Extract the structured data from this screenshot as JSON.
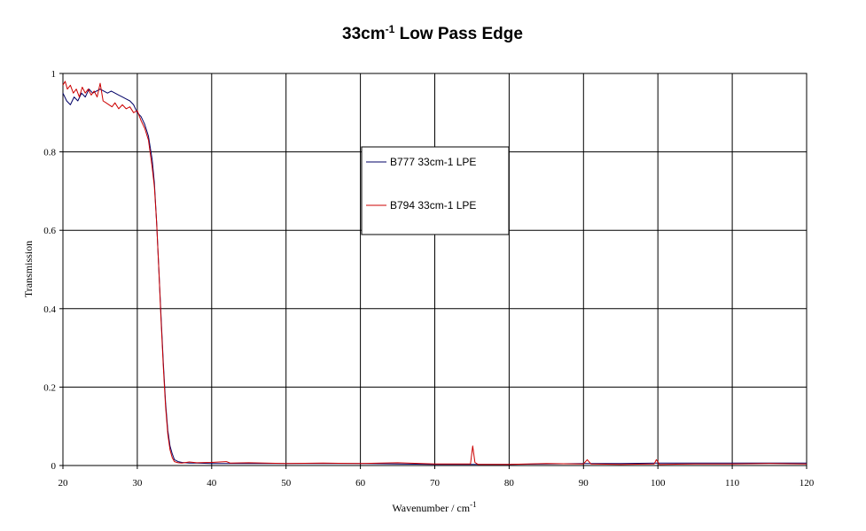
{
  "chart_data": {
    "type": "line",
    "title": {
      "base": "33cm",
      "superscript": "-1",
      "rest": " Low Pass Edge"
    },
    "xlabel": {
      "base": "Wavenumber / cm",
      "superscript": "-1"
    },
    "ylabel": "Transmission",
    "xlim": [
      20,
      120
    ],
    "ylim": [
      0,
      1
    ],
    "x_ticks": [
      20,
      30,
      40,
      50,
      60,
      70,
      80,
      90,
      100,
      110,
      120
    ],
    "y_ticks": [
      0,
      0.2,
      0.4,
      0.6,
      0.8,
      1
    ],
    "grid": true,
    "legend_position": "upper-center",
    "series": [
      {
        "name": "B777 33cm-1  LPE",
        "color": "#000066",
        "x": [
          20,
          20.5,
          21,
          21.5,
          22,
          22.5,
          23,
          23.5,
          24,
          24.5,
          25,
          25.5,
          26,
          26.5,
          27,
          27.5,
          28,
          28.5,
          29,
          29.5,
          30,
          30.5,
          31,
          31.5,
          32,
          32.3,
          32.6,
          32.9,
          33.2,
          33.5,
          33.8,
          34.1,
          34.4,
          34.7,
          35,
          35.5,
          36,
          37,
          38,
          40,
          42,
          45,
          50,
          55,
          60,
          65,
          70,
          75,
          75.5,
          80,
          85,
          90,
          95,
          100,
          105,
          110,
          115,
          120
        ],
        "y": [
          0.95,
          0.93,
          0.92,
          0.94,
          0.93,
          0.95,
          0.94,
          0.96,
          0.95,
          0.955,
          0.96,
          0.955,
          0.95,
          0.955,
          0.95,
          0.945,
          0.94,
          0.935,
          0.93,
          0.92,
          0.9,
          0.89,
          0.87,
          0.84,
          0.78,
          0.72,
          0.62,
          0.5,
          0.38,
          0.26,
          0.16,
          0.09,
          0.05,
          0.03,
          0.015,
          0.01,
          0.008,
          0.006,
          0.006,
          0.005,
          0.005,
          0.005,
          0.005,
          0.005,
          0.005,
          0.004,
          0.003,
          0.003,
          0.003,
          0.003,
          0.004,
          0.005,
          0.005,
          0.006,
          0.006,
          0.006,
          0.006,
          0.006
        ]
      },
      {
        "name": "B794 33cm-1  LPE",
        "color": "#cc0000",
        "x": [
          20,
          20.3,
          20.6,
          21,
          21.4,
          21.8,
          22.2,
          22.6,
          23,
          23.4,
          23.8,
          24.2,
          24.6,
          25,
          25.4,
          25.8,
          26.2,
          26.6,
          27,
          27.5,
          28,
          28.5,
          29,
          29.5,
          30,
          30.5,
          31,
          31.5,
          32,
          32.3,
          32.6,
          32.9,
          33.2,
          33.5,
          33.8,
          34.1,
          34.4,
          34.7,
          35,
          35.5,
          36,
          37,
          38,
          40,
          42,
          42.5,
          45,
          50,
          55,
          60,
          65,
          70,
          74.8,
          75.1,
          75.4,
          75.8,
          80,
          85,
          90,
          90.5,
          91,
          95,
          99.5,
          99.8,
          100.2,
          105,
          110,
          115,
          120
        ],
        "y": [
          0.97,
          0.98,
          0.96,
          0.97,
          0.95,
          0.96,
          0.94,
          0.965,
          0.95,
          0.96,
          0.945,
          0.955,
          0.94,
          0.975,
          0.93,
          0.925,
          0.92,
          0.915,
          0.925,
          0.91,
          0.92,
          0.91,
          0.915,
          0.9,
          0.905,
          0.88,
          0.86,
          0.83,
          0.76,
          0.71,
          0.62,
          0.5,
          0.37,
          0.25,
          0.15,
          0.08,
          0.04,
          0.02,
          0.01,
          0.007,
          0.006,
          0.009,
          0.007,
          0.008,
          0.01,
          0.006,
          0.007,
          0.005,
          0.006,
          0.005,
          0.007,
          0.004,
          0.004,
          0.05,
          0.008,
          0.003,
          0.003,
          0.005,
          0.004,
          0.015,
          0.004,
          0.003,
          0.004,
          0.015,
          0.003,
          0.004,
          0.004,
          0.005,
          0.004
        ]
      }
    ]
  }
}
